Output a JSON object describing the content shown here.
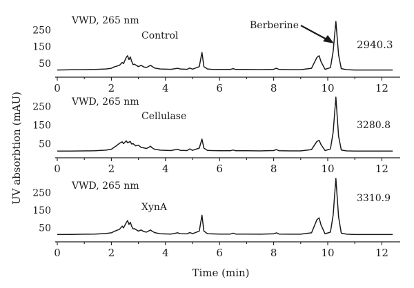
{
  "chart_data": {
    "type": "line",
    "xlabel": "Time (min)",
    "ylabel": "UV absorbtion (mAU)",
    "xlim": [
      0,
      12.4
    ],
    "ylim": [
      0,
      330
    ],
    "x_ticks": [
      "0",
      "2",
      "4",
      "6",
      "8",
      "10",
      "12"
    ],
    "y_ticks": [
      "50",
      "150",
      "250"
    ],
    "annotation": "Berberine",
    "panels": [
      {
        "detector": "VWD, 265 nm",
        "name": "Control",
        "berberine_area": "2940.3",
        "series": [
          {
            "x": [
              0,
              0.5,
              1.0,
              1.4,
              1.8,
              2.0,
              2.1,
              2.3,
              2.4,
              2.45,
              2.55,
              2.6,
              2.65,
              2.7,
              2.75,
              2.8,
              2.85,
              3.0,
              3.1,
              3.2,
              3.3,
              3.45,
              3.5,
              3.6,
              3.8,
              4.2,
              4.45,
              4.55,
              4.8,
              4.9,
              5.0,
              5.25,
              5.35,
              5.42,
              5.55,
              5.7,
              6.0,
              6.4,
              6.5,
              6.6,
              7.0,
              7.5,
              8.0,
              8.1,
              8.2,
              8.6,
              9.0,
              9.4,
              9.6,
              9.68,
              9.75,
              9.9,
              10.1,
              10.2,
              10.3,
              10.4,
              10.5,
              10.7,
              11.0,
              11.5,
              12.0,
              12.4
            ],
            "y": [
              10,
              11,
              12,
              13,
              16,
              20,
              28,
              38,
              55,
              48,
              85,
              95,
              72,
              88,
              62,
              42,
              45,
              30,
              38,
              28,
              25,
              38,
              32,
              22,
              16,
              14,
              20,
              16,
              14,
              22,
              15,
              30,
              115,
              30,
              16,
              14,
              13,
              13,
              18,
              13,
              13,
              12,
              14,
              20,
              13,
              12,
              12,
              20,
              85,
              95,
              60,
              14,
              24,
              120,
              300,
              100,
              18,
              12,
              10,
              10,
              10,
              10
            ]
          }
        ]
      },
      {
        "detector": "VWD, 265 nm",
        "name": "Cellulase",
        "berberine_area": "3280.8",
        "series": [
          {
            "x": [
              0,
              0.5,
              1.0,
              1.4,
              1.8,
              2.0,
              2.1,
              2.2,
              2.3,
              2.4,
              2.45,
              2.55,
              2.6,
              2.7,
              2.75,
              2.8,
              2.9,
              3.0,
              3.1,
              3.3,
              3.45,
              3.5,
              3.6,
              3.8,
              4.2,
              4.45,
              4.55,
              4.8,
              4.9,
              5.0,
              5.25,
              5.35,
              5.42,
              5.55,
              5.7,
              6.0,
              6.4,
              6.5,
              6.6,
              7.0,
              7.5,
              8.0,
              8.1,
              8.2,
              8.6,
              9.0,
              9.4,
              9.6,
              9.68,
              9.75,
              9.9,
              10.1,
              10.2,
              10.3,
              10.4,
              10.5,
              10.7,
              11.0,
              11.5,
              12.0,
              12.4
            ],
            "y": [
              10,
              10,
              11,
              12,
              15,
              20,
              30,
              40,
              52,
              60,
              50,
              65,
              55,
              62,
              48,
              50,
              38,
              42,
              30,
              24,
              36,
              28,
              20,
              15,
              13,
              20,
              14,
              13,
              22,
              14,
              26,
              75,
              26,
              14,
              13,
              12,
              12,
              16,
              12,
              12,
              11,
              13,
              18,
              12,
              11,
              11,
              18,
              62,
              68,
              45,
              13,
              22,
              110,
              300,
              90,
              16,
              11,
              10,
              10,
              10,
              10
            ]
          }
        ]
      },
      {
        "detector": "VWD, 265 nm",
        "name": "XynA",
        "berberine_area": "3310.9",
        "series": [
          {
            "x": [
              0,
              0.5,
              1.0,
              1.4,
              1.8,
              2.0,
              2.1,
              2.3,
              2.4,
              2.45,
              2.55,
              2.6,
              2.65,
              2.7,
              2.75,
              2.8,
              2.85,
              3.0,
              3.1,
              3.2,
              3.3,
              3.45,
              3.5,
              3.6,
              3.8,
              4.2,
              4.45,
              4.55,
              4.8,
              4.9,
              5.0,
              5.25,
              5.35,
              5.42,
              5.55,
              5.7,
              6.0,
              6.4,
              6.5,
              6.6,
              7.0,
              7.5,
              8.0,
              8.1,
              8.2,
              8.6,
              9.0,
              9.4,
              9.6,
              9.68,
              9.75,
              9.9,
              10.1,
              10.2,
              10.3,
              10.4,
              10.5,
              10.7,
              11.0,
              11.5,
              12.0,
              12.4
            ],
            "y": [
              10,
              11,
              12,
              13,
              16,
              20,
              28,
              40,
              58,
              48,
              78,
              90,
              68,
              80,
              58,
              42,
              44,
              30,
              36,
              27,
              24,
              36,
              30,
              21,
              15,
              13,
              20,
              15,
              14,
              22,
              15,
              30,
              120,
              30,
              15,
              14,
              13,
              13,
              18,
              13,
              13,
              12,
              14,
              20,
              13,
              12,
              12,
              20,
              95,
              105,
              65,
              14,
              24,
              120,
              330,
              110,
              18,
              12,
              10,
              10,
              10,
              10
            ]
          }
        ]
      }
    ]
  }
}
